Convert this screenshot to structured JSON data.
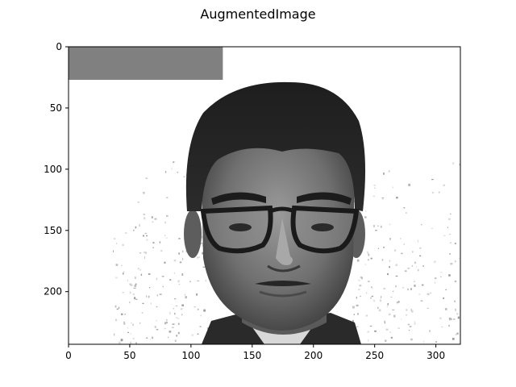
{
  "figure": {
    "title": "AugmentedImage"
  },
  "image": {
    "description_icon": "grayscale-face-photo",
    "occlusion_color": "#808080",
    "background_color": "#ffffff"
  },
  "axes": {
    "xlim": [
      0,
      320
    ],
    "ylim": [
      243,
      0
    ],
    "x_ticks": [
      {
        "value": 0,
        "label": "0"
      },
      {
        "value": 50,
        "label": "50"
      },
      {
        "value": 100,
        "label": "100"
      },
      {
        "value": 150,
        "label": "150"
      },
      {
        "value": 200,
        "label": "200"
      },
      {
        "value": 250,
        "label": "250"
      },
      {
        "value": 300,
        "label": "300"
      }
    ],
    "y_ticks": [
      {
        "value": 0,
        "label": "0"
      },
      {
        "value": 50,
        "label": "50"
      },
      {
        "value": 100,
        "label": "100"
      },
      {
        "value": 150,
        "label": "150"
      },
      {
        "value": 200,
        "label": "200"
      }
    ],
    "occlusion_rect": {
      "x0": 0,
      "x1": 126,
      "y0": 0,
      "y1": 27
    }
  }
}
